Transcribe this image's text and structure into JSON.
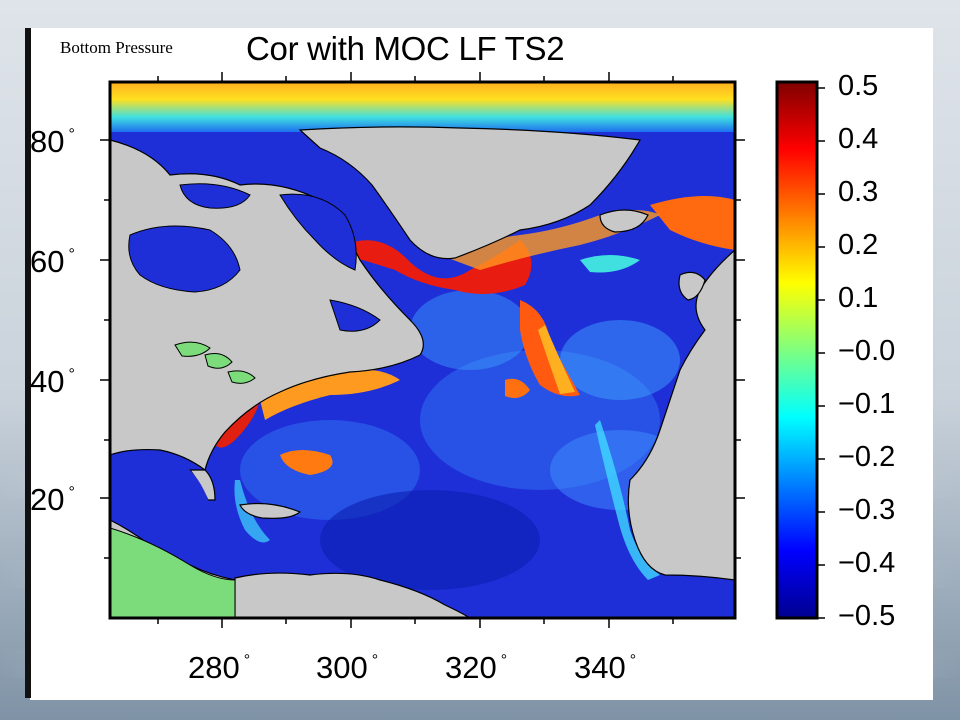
{
  "slide": {
    "subtitle": "Bottom Pressure",
    "title": "Cor with MOC LF TS2"
  },
  "map": {
    "lat_labels": [
      "80",
      "60",
      "40",
      "20"
    ],
    "lon_labels": [
      "280",
      "300",
      "320",
      "340"
    ],
    "degree_symbol": "°",
    "colors": {
      "land": "#c8c8c8",
      "coastline": "#000000",
      "lakes": "#7cdc7c",
      "ocean_base": "#1e2fd8"
    }
  },
  "colorbar": {
    "labels": [
      "0.5",
      "0.4",
      "0.3",
      "0.2",
      "0.1",
      "−0.0",
      "−0.1",
      "−0.2",
      "−0.3",
      "−0.4",
      "−0.5"
    ],
    "range": [
      -0.5,
      0.5
    ],
    "colormap": [
      "#00008f",
      "#0000ff",
      "#007fff",
      "#00ffff",
      "#7fff7f",
      "#ffff00",
      "#ff7f00",
      "#ff0000",
      "#7f0000"
    ]
  }
}
